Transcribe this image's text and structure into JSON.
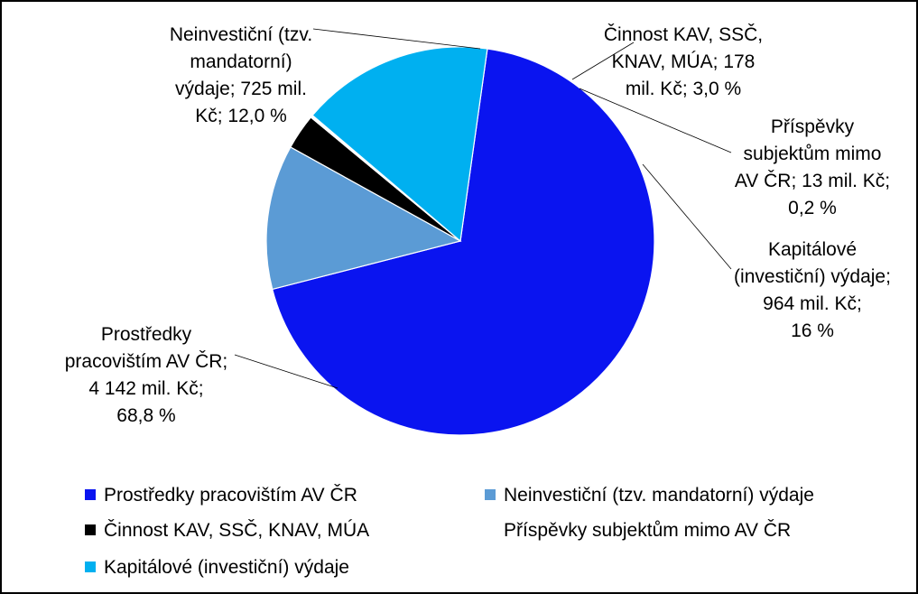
{
  "chart_data": {
    "type": "pie",
    "title": "",
    "legend_position": "bottom",
    "slices": [
      {
        "name": "Prostředky pracovištím AV ČR",
        "value": 4142,
        "percent_label": "68,8 %",
        "label_lines": [
          "Prostředky",
          "pracovištím AV ČR;",
          "4 142 mil. Kč;",
          "68,8 %"
        ],
        "color": "#0a14f0"
      },
      {
        "name": "Neinvestiční (tzv. mandatorní) výdaje",
        "value": 725,
        "percent_label": "12,0 %",
        "label_lines": [
          "Neinvestiční (tzv.",
          "mandatorní)",
          "výdaje; 725 mil.",
          "Kč; 12,0 %"
        ],
        "color": "#5b9bd5"
      },
      {
        "name": "Činnost KAV, SSČ, KNAV, MÚA",
        "value": 178,
        "percent_label": "3,0 %",
        "label_lines": [
          "Činnost KAV, SSČ,",
          "KNAV, MÚA; 178",
          "mil. Kč; 3,0 %"
        ],
        "color": "#000000"
      },
      {
        "name": "Příspěvky subjektům mimo AV ČR",
        "value": 13,
        "percent_label": "0,2 %",
        "label_lines": [
          "Příspěvky",
          "subjektům mimo",
          "AV ČR; 13 mil. Kč;",
          "0,2 %"
        ],
        "color": "#ffffff"
      },
      {
        "name": "Kapitálové (investiční) výdaje",
        "value": 964,
        "percent_label": "16 %",
        "label_lines": [
          "Kapitálové",
          "(investiční) výdaje;",
          "964 mil. Kč;",
          "16 %"
        ],
        "color": "#00b0f0"
      }
    ],
    "legend": [
      "Prostředky pracovištím AV ČR",
      "Neinvestiční (tzv. mandatorní) výdaje",
      "Činnost KAV, SSČ, KNAV, MÚA",
      "Příspěvky subjektům mimo AV ČR",
      "Kapitálové (investiční) výdaje"
    ]
  }
}
